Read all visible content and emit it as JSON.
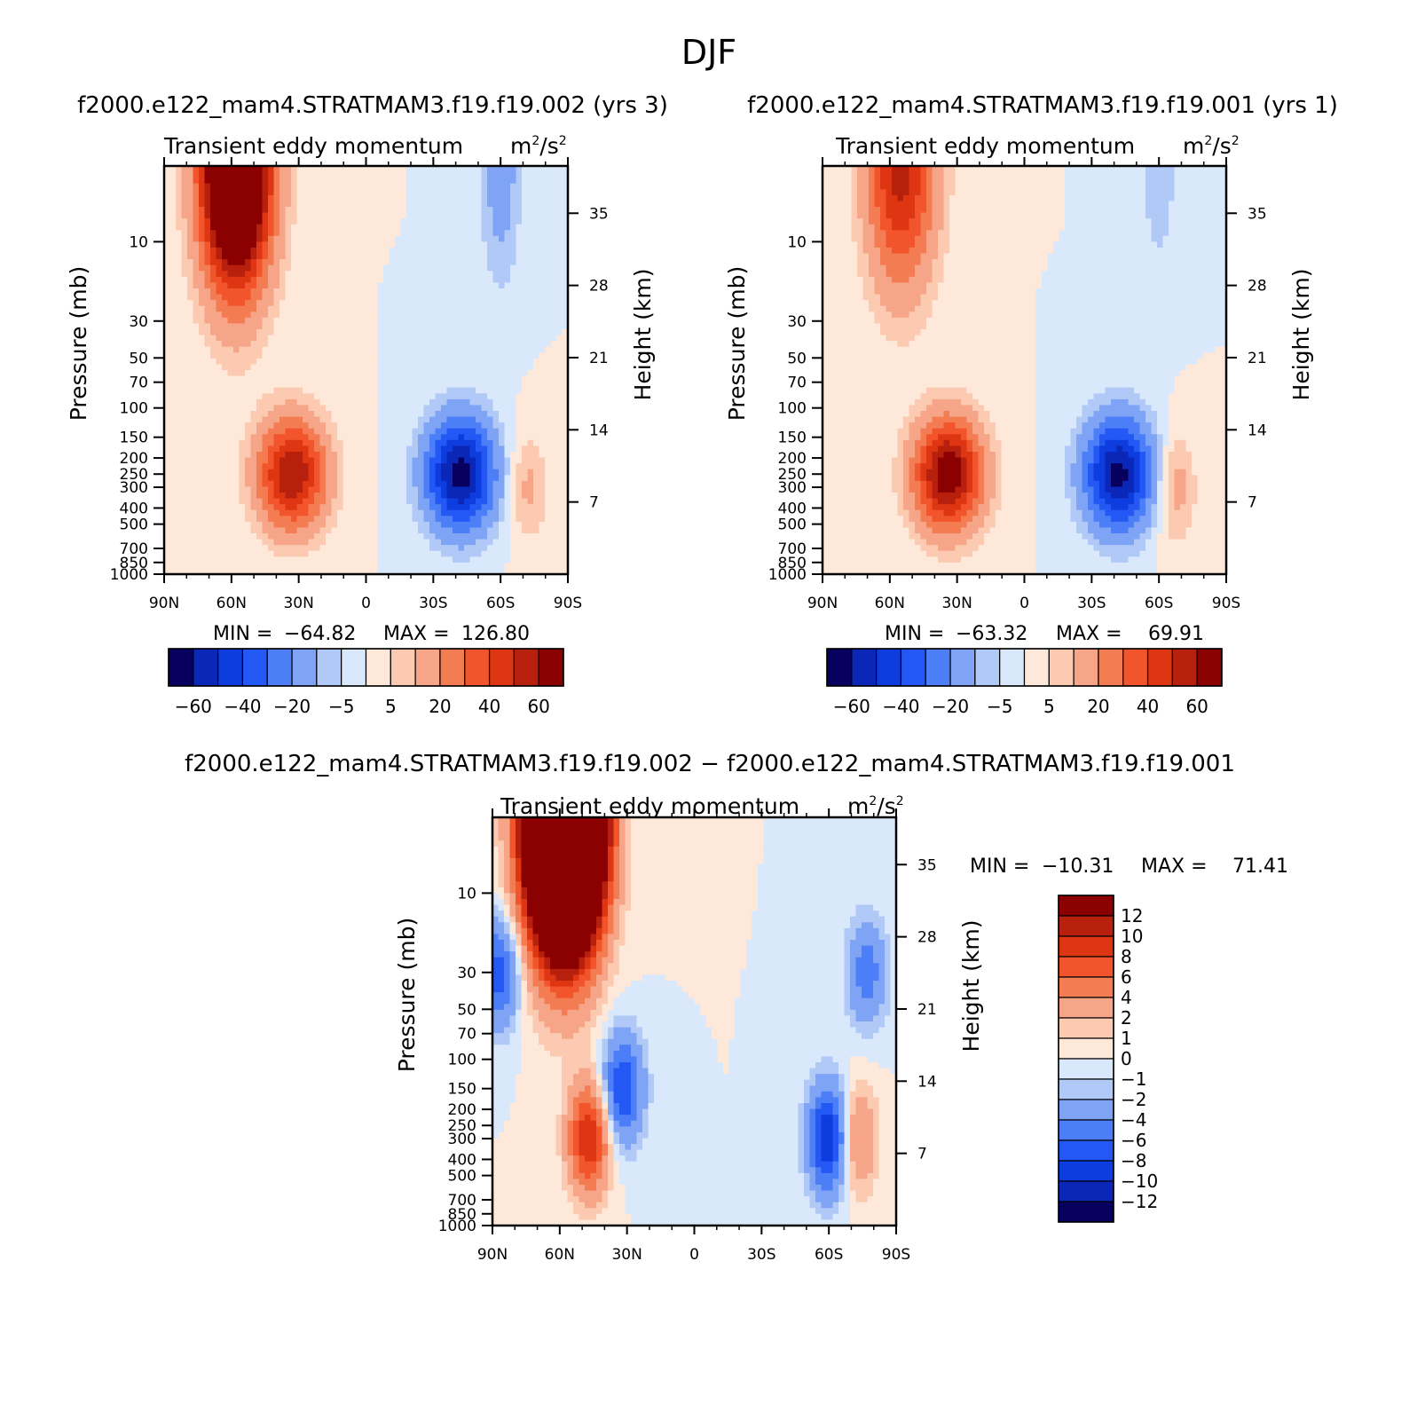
{
  "figure_title": "DJF",
  "panel_subtitle": "Transient eddy momentum",
  "units": {
    "base": "m",
    "exp1": "2",
    "slash": "/s",
    "exp2": "2"
  },
  "chart_data": [
    {
      "id": "panel1",
      "type": "heatmap",
      "title": "f2000.e122_mam4.STRATMAM3.f19.f19.002 (yrs 3)",
      "subtitle": "Transient eddy momentum",
      "xlabel": "",
      "ylabel": "Pressure (mb)",
      "y2label": "Height (km)",
      "x_ticks": [
        "90N",
        "60N",
        "30N",
        "0",
        "30S",
        "60S",
        "90S"
      ],
      "x_values": [
        90,
        60,
        30,
        0,
        -30,
        -60,
        -90
      ],
      "y_ticks": [
        "10",
        "30",
        "50",
        "70",
        "100",
        "150",
        "200",
        "250",
        "300",
        "400",
        "500",
        "700",
        "850",
        "1000"
      ],
      "y_values": [
        10,
        30,
        50,
        70,
        100,
        150,
        200,
        250,
        300,
        400,
        500,
        700,
        850,
        1000
      ],
      "y2_ticks": [
        "35",
        "28",
        "21",
        "14",
        "7"
      ],
      "y2_values": [
        35,
        28,
        21,
        14,
        7
      ],
      "ylim": [
        1000,
        3.5
      ],
      "stats": {
        "min_label": "MIN =",
        "min": "−64.82",
        "max_label": "MAX =",
        "max": "126.80"
      },
      "levels": [
        -60,
        -50,
        -40,
        -30,
        -20,
        -10,
        -5,
        0,
        5,
        10,
        20,
        30,
        40,
        50,
        60
      ],
      "colorbar_labels": [
        "−60",
        "−40",
        "−20",
        "−5",
        "5",
        "20",
        "40",
        "60"
      ],
      "features": [
        {
          "lat": 58,
          "p": 3.5,
          "value": 126.8
        },
        {
          "lat": 33,
          "p": 250,
          "value": 60
        },
        {
          "lat": -42,
          "p": 250,
          "value": -64.8
        },
        {
          "lat": -72,
          "p": 300,
          "value": 12
        },
        {
          "lat": -60,
          "p": 3.5,
          "value": -15
        }
      ]
    },
    {
      "id": "panel2",
      "type": "heatmap",
      "title": "f2000.e122_mam4.STRATMAM3.f19.f19.001 (yrs 1)",
      "subtitle": "Transient eddy momentum",
      "xlabel": "",
      "ylabel": "Pressure (mb)",
      "y2label": "Height (km)",
      "x_ticks": [
        "90N",
        "60N",
        "30N",
        "0",
        "30S",
        "60S",
        "90S"
      ],
      "x_values": [
        90,
        60,
        30,
        0,
        -30,
        -60,
        -90
      ],
      "y_ticks": [
        "10",
        "30",
        "50",
        "70",
        "100",
        "150",
        "200",
        "250",
        "300",
        "400",
        "500",
        "700",
        "850",
        "1000"
      ],
      "y_values": [
        10,
        30,
        50,
        70,
        100,
        150,
        200,
        250,
        300,
        400,
        500,
        700,
        850,
        1000
      ],
      "y2_ticks": [
        "35",
        "28",
        "21",
        "14",
        "7"
      ],
      "y2_values": [
        35,
        28,
        21,
        14,
        7
      ],
      "ylim": [
        1000,
        3.5
      ],
      "stats": {
        "min_label": "MIN =",
        "min": "−63.32",
        "max_label": "MAX =",
        "max": "69.91"
      },
      "levels": [
        -60,
        -50,
        -40,
        -30,
        -20,
        -10,
        -5,
        0,
        5,
        10,
        20,
        30,
        40,
        50,
        60
      ],
      "colorbar_labels": [
        "−60",
        "−40",
        "−20",
        "−5",
        "5",
        "20",
        "40",
        "60"
      ],
      "features": [
        {
          "lat": 55,
          "p": 3.5,
          "value": 55
        },
        {
          "lat": 34,
          "p": 250,
          "value": 69.9
        },
        {
          "lat": -42,
          "p": 250,
          "value": -63.3
        },
        {
          "lat": -67,
          "p": 300,
          "value": 15
        },
        {
          "lat": -60,
          "p": 3.5,
          "value": -8
        }
      ]
    },
    {
      "id": "panel3",
      "type": "heatmap",
      "title": "f2000.e122_mam4.STRATMAM3.f19.f19.002 − f2000.e122_mam4.STRATMAM3.f19.f19.001",
      "subtitle": "Transient eddy momentum",
      "xlabel": "",
      "ylabel": "Pressure (mb)",
      "y2label": "Height (km)",
      "x_ticks": [
        "90N",
        "60N",
        "30N",
        "0",
        "30S",
        "60S",
        "90S"
      ],
      "x_values": [
        90,
        60,
        30,
        0,
        -30,
        -60,
        -90
      ],
      "y_ticks": [
        "10",
        "30",
        "50",
        "70",
        "100",
        "150",
        "200",
        "250",
        "300",
        "400",
        "500",
        "700",
        "850",
        "1000"
      ],
      "y_values": [
        10,
        30,
        50,
        70,
        100,
        150,
        200,
        250,
        300,
        400,
        500,
        700,
        850,
        1000
      ],
      "y2_ticks": [
        "35",
        "28",
        "21",
        "14",
        "7"
      ],
      "y2_values": [
        35,
        28,
        21,
        14,
        7
      ],
      "ylim": [
        1000,
        3.5
      ],
      "stats": {
        "min_label": "MIN =",
        "min": "−10.31",
        "max_label": "MAX =",
        "max": "71.41"
      },
      "levels": [
        -12,
        -10,
        -8,
        -6,
        -4,
        -2,
        -1,
        0,
        1,
        2,
        4,
        6,
        8,
        10,
        12
      ],
      "colorbar_labels": [
        "12",
        "10",
        "8",
        "6",
        "4",
        "2",
        "1",
        "0",
        "−1",
        "−2",
        "−4",
        "−6",
        "−8",
        "−10",
        "−12"
      ],
      "features": [
        {
          "lat": 58,
          "p": 3.5,
          "value": 71.4
        },
        {
          "lat": 47,
          "p": 300,
          "value": 10
        },
        {
          "lat": 32,
          "p": 150,
          "value": -8
        },
        {
          "lat": 87,
          "p": 30,
          "value": -7
        },
        {
          "lat": -60,
          "p": 300,
          "value": -10.3
        },
        {
          "lat": -72,
          "p": 300,
          "value": 5
        },
        {
          "lat": -77,
          "p": 30,
          "value": -5
        }
      ]
    }
  ],
  "palette": [
    "#08005e",
    "#0b27b8",
    "#0d3ddf",
    "#2458f5",
    "#4c7ef7",
    "#7fa4f5",
    "#b1c9f7",
    "#dae8fb",
    "#fde8d9",
    "#fbcab0",
    "#f7a588",
    "#f47c53",
    "#f2552c",
    "#de3512",
    "#b7200c",
    "#8b0000"
  ]
}
